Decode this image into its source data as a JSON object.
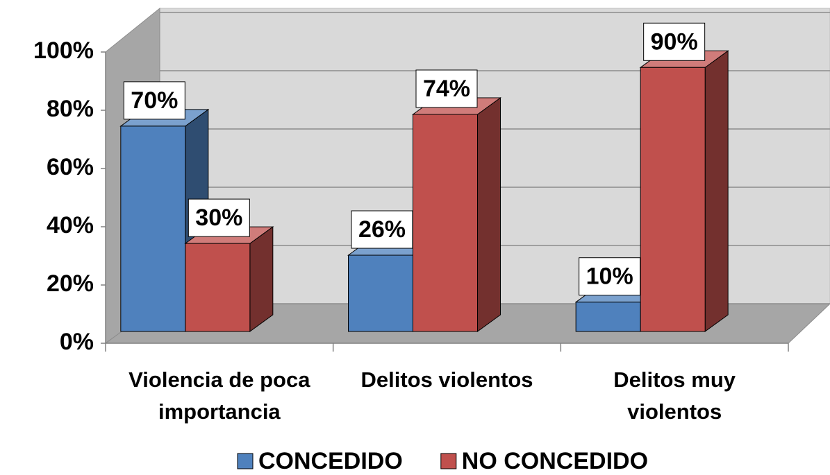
{
  "chart_data": {
    "type": "bar3d",
    "categories": [
      "Violencia de poca importancia",
      "Delitos violentos",
      "Delitos muy violentos"
    ],
    "series": [
      {
        "name": "CONCEDIDO",
        "color": "#4f81bd",
        "values": [
          70,
          26,
          10
        ],
        "value_labels": [
          "70%",
          "26%",
          "10%"
        ]
      },
      {
        "name": "NO CONCEDIDO",
        "color": "#c0504d",
        "values": [
          30,
          74,
          90
        ],
        "value_labels": [
          "30%",
          "74%",
          "90%"
        ]
      }
    ],
    "ylim": [
      0,
      100
    ],
    "yticks": [
      {
        "value": 0,
        "label": "0%"
      },
      {
        "value": 20,
        "label": "20%"
      },
      {
        "value": 40,
        "label": "40%"
      },
      {
        "value": 60,
        "label": "60%"
      },
      {
        "value": 80,
        "label": "80%"
      },
      {
        "value": 100,
        "label": "100%"
      }
    ],
    "grid": true,
    "legend": "bottom"
  }
}
